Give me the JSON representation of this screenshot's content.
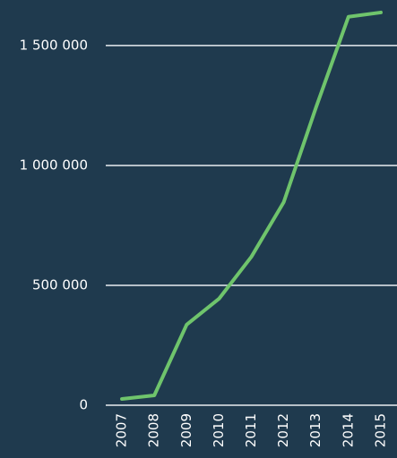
{
  "chart_data": {
    "type": "line",
    "categories": [
      "2007",
      "2008",
      "2009",
      "2010",
      "2011",
      "2012",
      "2013",
      "2014",
      "2015"
    ],
    "series": [
      {
        "name": null,
        "color": "#6fc46c",
        "values": [
          26000,
          41000,
          336000,
          444000,
          619000,
          847000,
          1243000,
          1620000,
          1638000
        ]
      }
    ],
    "ylim": [
      0,
      1690000
    ],
    "yticks": [
      0,
      {
        "value": 500000,
        "label": "500 000"
      },
      {
        "value": 1000000,
        "label": "1 000 000"
      },
      {
        "value": 1500000,
        "label": "1 500 000"
      }
    ],
    "grid": true
  }
}
